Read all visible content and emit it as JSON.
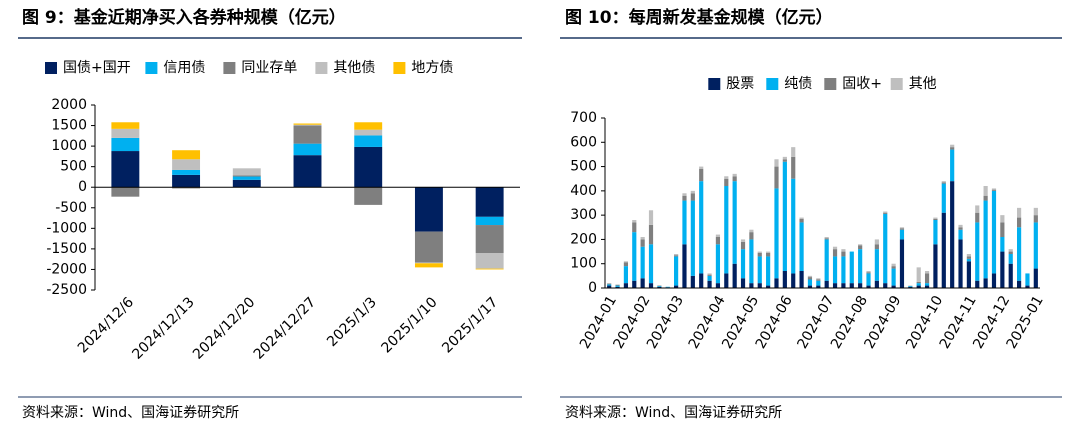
{
  "chart_data": [
    {
      "type": "stacked_bar",
      "title": "图 9：基金近期净买入各券种规模（亿元）",
      "source": "资料来源：Wind、国海证券研究所",
      "categories": [
        "2024/12/6",
        "2024/12/13",
        "2024/12/20",
        "2024/12/27",
        "2025/1/3",
        "2025/1/10",
        "2025/1/17"
      ],
      "series": [
        {
          "name": "国债+国开",
          "color": "#002060",
          "values": [
            880,
            300,
            180,
            780,
            980,
            -1080,
            -720
          ]
        },
        {
          "name": "信用债",
          "color": "#00b0f0",
          "values": [
            320,
            120,
            80,
            280,
            280,
            0,
            -200
          ]
        },
        {
          "name": "同业存单",
          "color": "#7f7f7f",
          "values": [
            -230,
            -30,
            30,
            440,
            -430,
            -750,
            -680
          ]
        },
        {
          "name": "其他债",
          "color": "#bfbfbf",
          "values": [
            220,
            260,
            170,
            20,
            140,
            -20,
            -380
          ]
        },
        {
          "name": "地方债",
          "color": "#ffc000",
          "values": [
            160,
            220,
            0,
            30,
            180,
            -100,
            -20
          ]
        }
      ],
      "ylim": [
        -2500,
        2000
      ],
      "yticks": [
        -2500,
        -2000,
        -1500,
        -1000,
        -500,
        0,
        500,
        1000,
        1500,
        2000
      ]
    },
    {
      "type": "stacked_bar",
      "title": "图 10：每周新发基金规模（亿元）",
      "source": "资料来源：Wind、国海证券研究所",
      "categories": [
        "2024-01",
        null,
        null,
        null,
        "2024-02",
        null,
        null,
        null,
        "2024-03",
        null,
        null,
        null,
        null,
        "2024-04",
        null,
        null,
        null,
        "2024-05",
        null,
        null,
        null,
        "2024-06",
        null,
        null,
        null,
        null,
        "2024-07",
        null,
        null,
        null,
        "2024-08",
        null,
        null,
        null,
        "2024-09",
        null,
        null,
        null,
        null,
        "2024-10",
        null,
        null,
        null,
        "2024-11",
        null,
        null,
        null,
        "2024-12",
        null,
        null,
        null,
        "2025-01"
      ],
      "series": [
        {
          "name": "股票",
          "color": "#002060",
          "values": [
            10,
            5,
            20,
            30,
            40,
            20,
            5,
            3,
            10,
            180,
            50,
            60,
            30,
            20,
            60,
            100,
            40,
            20,
            20,
            10,
            40,
            70,
            60,
            70,
            10,
            10,
            30,
            20,
            20,
            20,
            20,
            10,
            30,
            20,
            10,
            200,
            5,
            10,
            10,
            180,
            310,
            440,
            200,
            110,
            30,
            40,
            60,
            150,
            100,
            30,
            10,
            80
          ]
        },
        {
          "name": "纯债",
          "color": "#00b0f0",
          "values": [
            5,
            5,
            70,
            200,
            130,
            160,
            3,
            2,
            120,
            180,
            310,
            380,
            20,
            160,
            360,
            340,
            120,
            180,
            110,
            120,
            370,
            450,
            390,
            200,
            25,
            20,
            170,
            110,
            110,
            130,
            140,
            50,
            130,
            285,
            70,
            40,
            3,
            10,
            10,
            100,
            120,
            130,
            40,
            10,
            240,
            320,
            340,
            60,
            40,
            220,
            50,
            190
          ]
        },
        {
          "name": "固收+",
          "color": "#7f7f7f",
          "values": [
            3,
            3,
            15,
            40,
            30,
            80,
            2,
            0,
            5,
            20,
            30,
            50,
            5,
            30,
            30,
            20,
            30,
            30,
            15,
            15,
            90,
            10,
            90,
            15,
            10,
            5,
            5,
            30,
            20,
            0,
            15,
            5,
            20,
            5,
            10,
            5,
            1,
            5,
            40,
            5,
            5,
            10,
            10,
            10,
            40,
            20,
            5,
            60,
            10,
            40,
            0,
            30
          ]
        },
        {
          "name": "其他",
          "color": "#bfbfbf",
          "values": [
            2,
            2,
            5,
            10,
            10,
            60,
            0,
            0,
            5,
            10,
            10,
            10,
            5,
            10,
            10,
            10,
            10,
            10,
            5,
            5,
            30,
            10,
            40,
            5,
            5,
            5,
            5,
            10,
            10,
            0,
            5,
            5,
            20,
            5,
            10,
            5,
            1,
            60,
            10,
            5,
            5,
            10,
            10,
            10,
            30,
            40,
            5,
            30,
            10,
            40,
            0,
            30
          ]
        }
      ],
      "ylim": [
        0,
        700
      ],
      "yticks": [
        0,
        100,
        200,
        300,
        400,
        500,
        600,
        700
      ]
    }
  ]
}
